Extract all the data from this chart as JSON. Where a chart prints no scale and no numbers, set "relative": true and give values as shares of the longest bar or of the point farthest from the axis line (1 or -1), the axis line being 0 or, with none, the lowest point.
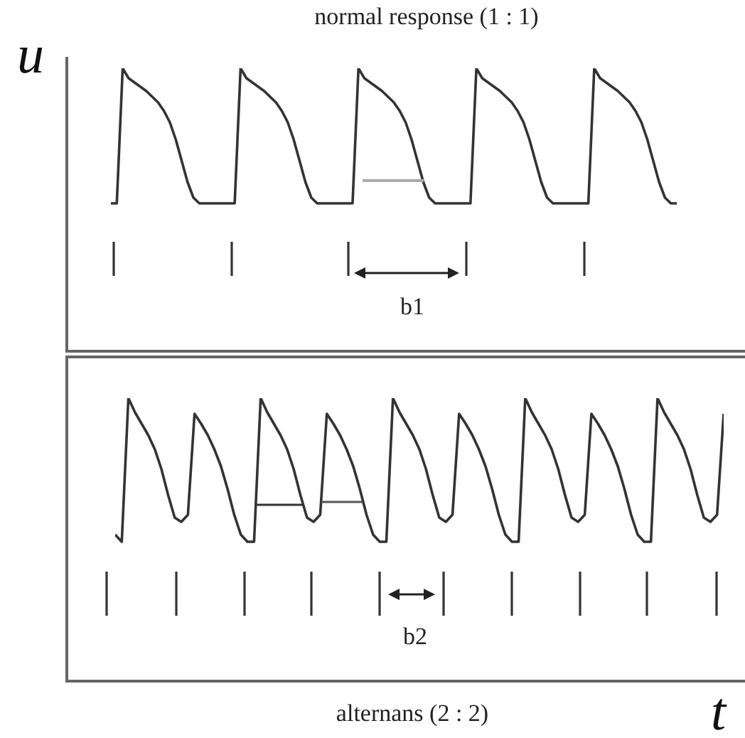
{
  "chart_data": [
    {
      "type": "line",
      "title": "normal response (1 : 1)",
      "ylabel": "u",
      "relative": true,
      "color": "#333333",
      "annotations": [
        "b1"
      ],
      "categories": [
        null,
        null,
        null,
        null,
        null,
        null,
        null,
        null,
        null,
        null,
        null,
        null,
        null,
        null,
        null,
        null,
        null,
        null,
        null,
        null,
        null,
        null,
        null,
        null,
        null,
        null,
        null,
        null,
        null,
        null,
        null,
        null,
        null,
        null,
        null,
        null,
        null,
        null,
        null,
        null,
        null,
        null,
        null,
        null,
        null,
        null,
        null,
        null,
        null,
        null,
        null,
        null,
        null,
        null,
        null,
        null,
        null,
        null,
        null,
        null,
        null,
        null,
        null,
        null,
        null,
        null,
        null,
        null,
        null,
        null,
        null,
        null,
        null,
        null,
        null,
        null,
        null,
        null,
        null,
        null,
        null,
        null,
        null,
        null,
        null,
        null,
        null,
        null,
        null,
        null,
        null,
        null,
        null,
        null,
        null,
        null,
        null
      ],
      "values": [
        0.525,
        0.525,
        1,
        0.965,
        0.95,
        0.935,
        0.92,
        0.9,
        0.88,
        0.85,
        0.81,
        0.75,
        0.675,
        0.6,
        0.545,
        0.525,
        0.525,
        0.525,
        0.525,
        0.525,
        0.525,
        0.525,
        1,
        0.965,
        0.95,
        0.935,
        0.92,
        0.9,
        0.88,
        0.85,
        0.81,
        0.75,
        0.675,
        0.6,
        0.545,
        0.525,
        0.525,
        0.525,
        0.525,
        0.525,
        0.525,
        0.525,
        1,
        0.965,
        0.95,
        0.935,
        0.92,
        0.9,
        0.88,
        0.85,
        0.81,
        0.75,
        0.675,
        0.6,
        0.545,
        0.525,
        0.525,
        0.525,
        0.525,
        0.525,
        0.525,
        0.525,
        1,
        0.965,
        0.95,
        0.935,
        0.92,
        0.9,
        0.88,
        0.85,
        0.81,
        0.75,
        0.675,
        0.6,
        0.545,
        0.525,
        0.525,
        0.525,
        0.525,
        0.525,
        0.525,
        0.525,
        1,
        0.965,
        0.95,
        0.935,
        0.92,
        0.9,
        0.88,
        0.85,
        0.81,
        0.75,
        0.675,
        0.6,
        0.545,
        0.525,
        0.525
      ]
    },
    {
      "type": "line",
      "title": "alternans (2 : 2)",
      "xlabel": "t",
      "relative": true,
      "color": "#333333",
      "annotations": [
        "b2"
      ],
      "categories": [
        null,
        null,
        null,
        null,
        null,
        null,
        null,
        null,
        null,
        null,
        null,
        null,
        null,
        null,
        null,
        null,
        null,
        null,
        null,
        null,
        null,
        null,
        null,
        null,
        null,
        null,
        null,
        null,
        null,
        null,
        null,
        null,
        null,
        null,
        null,
        null,
        null,
        null,
        null,
        null,
        null,
        null,
        null,
        null,
        null,
        null,
        null,
        null,
        null,
        null,
        null,
        null,
        null,
        null,
        null,
        null,
        null,
        null,
        null,
        null,
        null,
        null,
        null,
        null,
        null,
        null,
        null,
        null,
        null,
        null,
        null,
        null,
        null,
        null,
        null,
        null,
        null,
        null,
        null,
        null,
        null,
        null,
        null,
        null,
        null,
        null,
        null,
        null,
        null,
        null,
        null,
        null,
        null
      ],
      "values": [
        0.52,
        0.495,
        1,
        0.95,
        0.91,
        0.87,
        0.82,
        0.75,
        0.66,
        0.58,
        0.565,
        0.59,
        0.945,
        0.91,
        0.87,
        0.82,
        0.76,
        0.68,
        0.59,
        0.52,
        0.495,
        0.495,
        1,
        0.95,
        0.91,
        0.87,
        0.82,
        0.75,
        0.66,
        0.58,
        0.565,
        0.59,
        0.945,
        0.91,
        0.87,
        0.82,
        0.76,
        0.68,
        0.59,
        0.52,
        0.495,
        0.495,
        1,
        0.95,
        0.91,
        0.87,
        0.82,
        0.75,
        0.66,
        0.58,
        0.565,
        0.59,
        0.945,
        0.91,
        0.87,
        0.82,
        0.76,
        0.68,
        0.59,
        0.52,
        0.495,
        0.495,
        1,
        0.95,
        0.91,
        0.87,
        0.82,
        0.75,
        0.66,
        0.58,
        0.565,
        0.59,
        0.945,
        0.91,
        0.87,
        0.82,
        0.76,
        0.68,
        0.59,
        0.52,
        0.495,
        0.495,
        1,
        0.95,
        0.91,
        0.87,
        0.82,
        0.75,
        0.66,
        0.58,
        0.565,
        0.59,
        0.945
      ]
    }
  ]
}
